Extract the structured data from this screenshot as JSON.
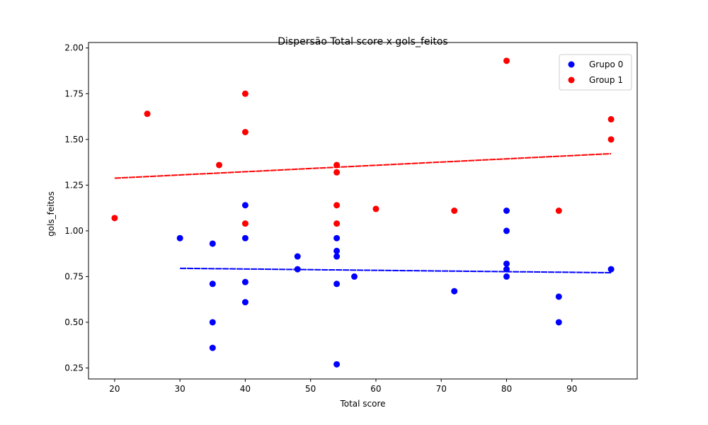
{
  "chart_data": {
    "type": "scatter",
    "title": "Dispersão Total score x gols_feitos",
    "xlabel": "Total score",
    "ylabel": "gols_feitos",
    "xlim": [
      16,
      100
    ],
    "ylim": [
      0.19,
      2.03
    ],
    "xticks": [
      20,
      30,
      40,
      50,
      60,
      70,
      80,
      90
    ],
    "yticks": [
      0.25,
      0.5,
      0.75,
      1.0,
      1.25,
      1.5,
      1.75,
      2.0
    ],
    "grid": false,
    "legend_position": "top-right",
    "series": [
      {
        "name": "Grupo 0",
        "color": "#0000ff",
        "points": [
          [
            30,
            0.96
          ],
          [
            35,
            0.93
          ],
          [
            35,
            0.71
          ],
          [
            35,
            0.5
          ],
          [
            35,
            0.36
          ],
          [
            40,
            1.14
          ],
          [
            40,
            0.96
          ],
          [
            40,
            0.72
          ],
          [
            40,
            0.61
          ],
          [
            48,
            0.86
          ],
          [
            48,
            0.79
          ],
          [
            54,
            0.96
          ],
          [
            54,
            0.89
          ],
          [
            54,
            0.86
          ],
          [
            54,
            0.71
          ],
          [
            54,
            0.27
          ],
          [
            56.7,
            0.75
          ],
          [
            72,
            0.67
          ],
          [
            80,
            1.11
          ],
          [
            80,
            1.0
          ],
          [
            80,
            0.82
          ],
          [
            80,
            0.79
          ],
          [
            80,
            0.75
          ],
          [
            88,
            0.64
          ],
          [
            88,
            0.5
          ],
          [
            96,
            0.79
          ]
        ],
        "trend": [
          [
            30,
            0.795
          ],
          [
            96,
            0.771
          ]
        ]
      },
      {
        "name": "Group 1",
        "color": "#ff0000",
        "points": [
          [
            20,
            1.07
          ],
          [
            25,
            1.64
          ],
          [
            36,
            1.36
          ],
          [
            40,
            1.75
          ],
          [
            40,
            1.54
          ],
          [
            40,
            1.04
          ],
          [
            54,
            1.36
          ],
          [
            54,
            1.32
          ],
          [
            54,
            1.14
          ],
          [
            54,
            1.04
          ],
          [
            60,
            1.12
          ],
          [
            72,
            1.11
          ],
          [
            80,
            1.93
          ],
          [
            88,
            1.11
          ],
          [
            96,
            1.61
          ],
          [
            96,
            1.5
          ]
        ],
        "trend": [
          [
            20,
            1.288
          ],
          [
            96,
            1.422
          ]
        ]
      }
    ]
  }
}
